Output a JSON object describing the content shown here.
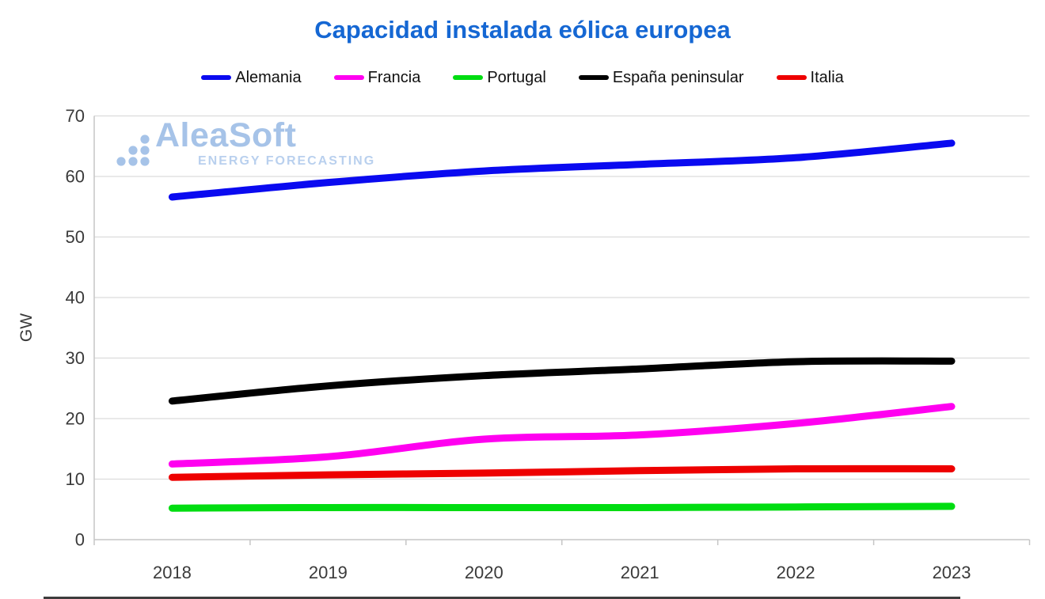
{
  "title": {
    "text": "Capacidad instalada eólica europea",
    "color": "#1567d3"
  },
  "watermark": {
    "name": "AleaSoft",
    "tagline": "ENERGY FORECASTING",
    "name_color": "#a6c3e8",
    "tagline_color": "#b9d0ee"
  },
  "axes": {
    "ylabel": "GW",
    "y_tick_labels": [
      "0",
      "10",
      "20",
      "30",
      "40",
      "50",
      "60",
      "70"
    ],
    "x_tick_labels": [
      "2018",
      "2019",
      "2020",
      "2021",
      "2022",
      "2023"
    ],
    "grid_color": "#dcdcdc",
    "spine_color": "#c6c6c6",
    "text_color": "#3a3a3a"
  },
  "chart_data": {
    "type": "line",
    "title": "Capacidad instalada eólica europea",
    "xlabel": "",
    "ylabel": "GW",
    "x": [
      2018,
      2019,
      2020,
      2021,
      2022,
      2023
    ],
    "ylim": [
      0,
      70
    ],
    "ytick_step": 10,
    "grid": "horizontal",
    "legend_position": "top-center",
    "line_style": "smooth, thick (9px), rounded caps",
    "series": [
      {
        "name": "Alemania",
        "color": "#0a0af0",
        "values": [
          56.6,
          59.0,
          60.9,
          62.0,
          63.1,
          65.5
        ]
      },
      {
        "name": "Francia",
        "color": "#ff00f0",
        "values": [
          12.5,
          13.7,
          16.6,
          17.3,
          19.2,
          22.0
        ]
      },
      {
        "name": "Portugal",
        "color": "#00dd11",
        "values": [
          5.2,
          5.3,
          5.3,
          5.3,
          5.4,
          5.5
        ]
      },
      {
        "name": "España peninsular",
        "color": "#000000",
        "values": [
          22.9,
          25.4,
          27.1,
          28.2,
          29.4,
          29.5
        ]
      },
      {
        "name": "Italia",
        "color": "#ee0000",
        "values": [
          10.3,
          10.7,
          11.0,
          11.4,
          11.7,
          11.7
        ]
      }
    ]
  }
}
